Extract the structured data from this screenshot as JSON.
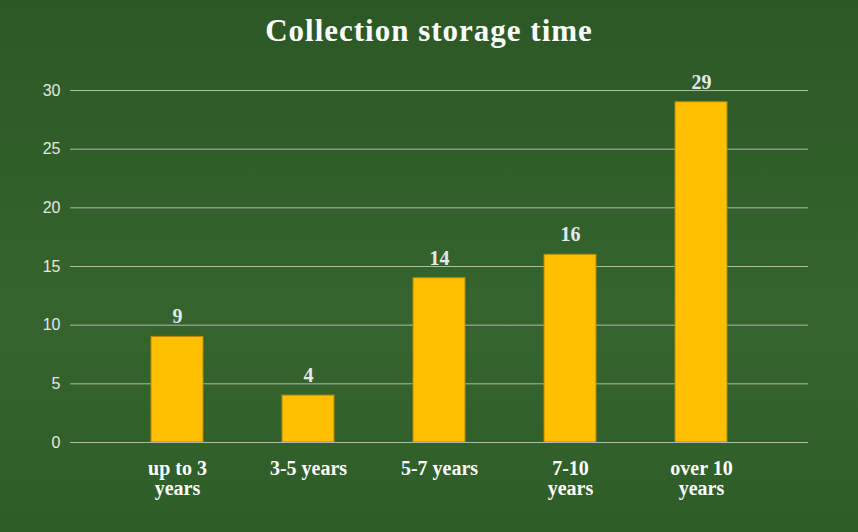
{
  "chart_data": {
    "type": "bar",
    "title": "Collection storage time",
    "categories": [
      "up to 3 years",
      "3-5 years",
      "5-7 years",
      "7-10 years",
      "over 10 years"
    ],
    "values": [
      9,
      4,
      14,
      16,
      29
    ],
    "color": "#ffc000",
    "ylim": [
      0,
      30
    ],
    "yticks": [
      0,
      5,
      10,
      15,
      20,
      25,
      30
    ],
    "grid": true,
    "data_labels": true
  }
}
